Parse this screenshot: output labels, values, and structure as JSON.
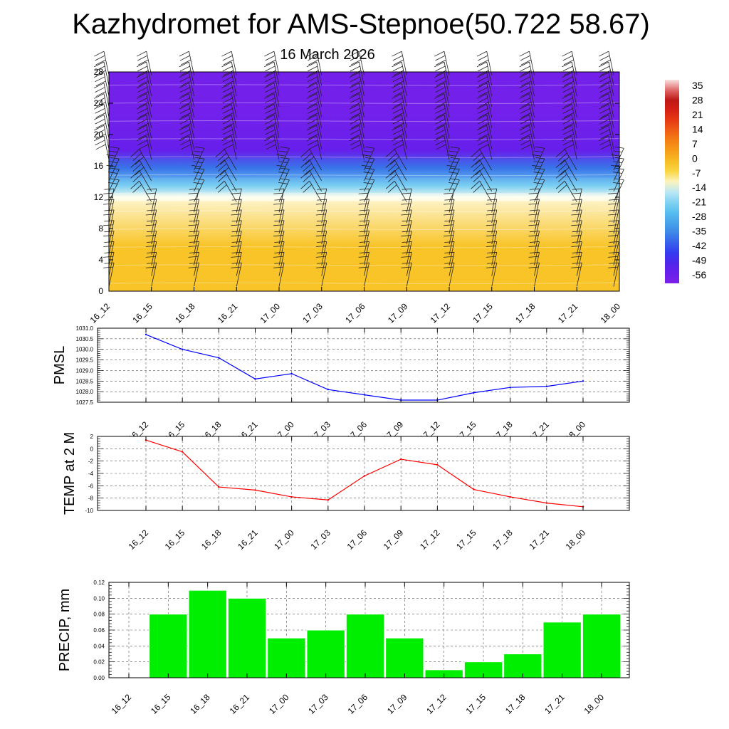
{
  "title": "Kazhydromet for AMS-Stepnoe(50.722 58.67)",
  "subtitle": "16 March 2026",
  "chart_data": [
    {
      "type": "heatmap",
      "name": "vertical time section",
      "x": [
        "16_12",
        "16_15",
        "16_18",
        "16_21",
        "17_00",
        "17_03",
        "17_06",
        "17_09",
        "17_12",
        "17_15",
        "17_18",
        "17_21",
        "18_00"
      ],
      "y_ticks": [
        "0",
        "4",
        "8",
        "12",
        "16",
        "20",
        "24",
        "28"
      ],
      "ylim": [
        0,
        28
      ],
      "colorbar_labels": [
        "35",
        "28",
        "21",
        "14",
        "7",
        "0",
        "-7",
        "-14",
        "-21",
        "-28",
        "-35",
        "-42",
        "-49",
        "-56"
      ],
      "colorbar_range": [
        -60,
        38
      ],
      "bands": [
        {
          "from": 0,
          "to": 11.5,
          "value": -2
        },
        {
          "from": 11.5,
          "to": 12.5,
          "value": -12
        },
        {
          "from": 12.5,
          "to": 14.5,
          "value": -22
        },
        {
          "from": 14.5,
          "to": 17,
          "value": -38
        },
        {
          "from": 17,
          "to": 19,
          "value": -55
        },
        {
          "from": 19,
          "to": 28,
          "value": -58
        }
      ],
      "wind_barbs": "shown at every grid column and level"
    },
    {
      "type": "line",
      "ylabel": "PMSL",
      "x": [
        "16_12",
        "16_15",
        "16_18",
        "16_21",
        "17_00",
        "17_03",
        "17_06",
        "17_09",
        "17_12",
        "17_15",
        "17_18",
        "17_21",
        "18_00"
      ],
      "values": [
        1030.7,
        1030.0,
        1029.6,
        1028.6,
        1028.85,
        1028.1,
        1027.85,
        1027.6,
        1027.6,
        1027.95,
        1028.2,
        1028.25,
        1028.5
      ],
      "ylim": [
        1027.5,
        1031.0
      ],
      "y_ticks": [
        "1027.5",
        "1028.0",
        "1028.5",
        "1029.0",
        "1029.5",
        "1030.0",
        "1030.5",
        "1031.0"
      ],
      "color": "#0000ff"
    },
    {
      "type": "line",
      "ylabel": "TEMP at 2 M",
      "x": [
        "16_12",
        "16_15",
        "16_18",
        "16_21",
        "17_00",
        "17_03",
        "17_06",
        "17_09",
        "17_12",
        "17_15",
        "17_18",
        "17_21",
        "18_00"
      ],
      "values": [
        1.4,
        -0.5,
        -6.2,
        -6.7,
        -7.8,
        -8.3,
        -4.4,
        -1.7,
        -2.6,
        -6.6,
        -7.8,
        -8.8,
        -9.4
      ],
      "ylim": [
        -10,
        2
      ],
      "y_ticks": [
        "-10",
        "-8",
        "-6",
        "-4",
        "-2",
        "0",
        "2"
      ],
      "color": "#ff0000"
    },
    {
      "type": "bar",
      "ylabel": "PRECIP, mm",
      "categories": [
        "16_12",
        "16_15",
        "16_18",
        "16_21",
        "17_00",
        "17_03",
        "17_06",
        "17_09",
        "17_12",
        "17_15",
        "17_18",
        "17_21",
        "18_00"
      ],
      "values": [
        0.0,
        0.08,
        0.11,
        0.1,
        0.05,
        0.06,
        0.08,
        0.05,
        0.01,
        0.02,
        0.03,
        0.07,
        0.08
      ],
      "ylim": [
        0,
        0.12
      ],
      "y_ticks": [
        "0.00",
        "0.02",
        "0.04",
        "0.06",
        "0.08",
        "0.10",
        "0.12"
      ],
      "color": "#00ee00"
    }
  ]
}
